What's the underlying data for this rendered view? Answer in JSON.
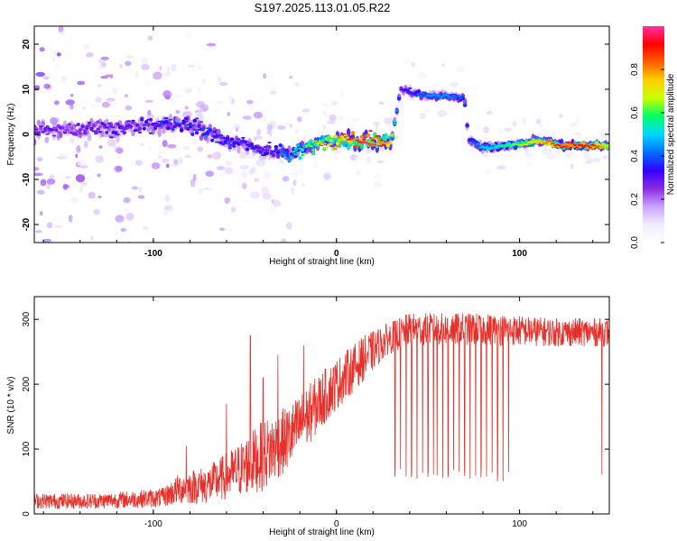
{
  "title": "S197.2025.113.01.05.R22",
  "colors": {
    "background": "#ffffff",
    "snr_line": "#e8302a",
    "colormap": [
      "#ffffff",
      "#f3ebff",
      "#c9a3ff",
      "#8a2be2",
      "#3300ff",
      "#0070ff",
      "#00d8ff",
      "#00ff66",
      "#c8ff00",
      "#ffd000",
      "#ff6000",
      "#ff0000",
      "#ff2fa8"
    ]
  },
  "chart_data": [
    {
      "type": "heatmap",
      "name": "spectrogram",
      "xlabel": "Height of straight line (km)",
      "ylabel": "Frequency (Hz)",
      "xlim": [
        -165,
        149
      ],
      "ylim": [
        -24,
        24
      ],
      "xticks": [
        -100,
        0,
        100
      ],
      "xtick_labels": [
        "-100",
        "0",
        "100"
      ],
      "yticks": [
        -20,
        -10,
        0,
        10,
        20
      ],
      "ytick_labels": [
        "-20",
        "-10",
        "0",
        "10",
        "20"
      ],
      "colorbar": {
        "label": "Normalized spectral amplitude",
        "range": [
          0,
          1
        ],
        "ticks": [
          0.0,
          0.2,
          0.4,
          0.6,
          0.8
        ],
        "tick_labels": [
          "0.0",
          "0.2",
          "0.4",
          "0.6",
          "0.8"
        ]
      },
      "ridge": [
        {
          "x": -165,
          "freq": 1.0,
          "amp": 0.25
        },
        {
          "x": -140,
          "freq": 1.0,
          "amp": 0.25
        },
        {
          "x": -120,
          "freq": 1.5,
          "amp": 0.28
        },
        {
          "x": -100,
          "freq": 2.0,
          "amp": 0.3
        },
        {
          "x": -85,
          "freq": 2.5,
          "amp": 0.32
        },
        {
          "x": -70,
          "freq": 0.5,
          "amp": 0.35
        },
        {
          "x": -60,
          "freq": -1.5,
          "amp": 0.32
        },
        {
          "x": -45,
          "freq": -3.0,
          "amp": 0.3
        },
        {
          "x": -35,
          "freq": -4.0,
          "amp": 0.3
        },
        {
          "x": -25,
          "freq": -4.5,
          "amp": 0.45
        },
        {
          "x": -15,
          "freq": -2.5,
          "amp": 0.6
        },
        {
          "x": -5,
          "freq": -1.5,
          "amp": 0.7
        },
        {
          "x": 5,
          "freq": -1.5,
          "amp": 0.8
        },
        {
          "x": 15,
          "freq": -1.5,
          "amp": 0.95
        },
        {
          "x": 25,
          "freq": -1.5,
          "amp": 0.9
        },
        {
          "x": 30,
          "freq": -1.5,
          "amp": 0.7
        },
        {
          "x": 35,
          "freq": 10.0,
          "amp": 0.3
        },
        {
          "x": 50,
          "freq": 8.5,
          "amp": 0.45
        },
        {
          "x": 60,
          "freq": 8.5,
          "amp": 0.45
        },
        {
          "x": 70,
          "freq": 8.0,
          "amp": 0.4
        },
        {
          "x": 72,
          "freq": -1.0,
          "amp": 0.35
        },
        {
          "x": 80,
          "freq": -3.0,
          "amp": 0.5
        },
        {
          "x": 95,
          "freq": -2.5,
          "amp": 0.6
        },
        {
          "x": 110,
          "freq": -1.5,
          "amp": 0.75
        },
        {
          "x": 125,
          "freq": -2.5,
          "amp": 0.95
        },
        {
          "x": 140,
          "freq": -2.5,
          "amp": 0.9
        },
        {
          "x": 149,
          "freq": -2.5,
          "amp": 0.7
        }
      ]
    },
    {
      "type": "line",
      "name": "snr",
      "xlabel": "Height of straight line (km)",
      "ylabel": "SNR (10 * v/v)",
      "xlim": [
        -165,
        149
      ],
      "ylim": [
        0,
        335
      ],
      "xticks": [
        -100,
        0,
        100
      ],
      "xtick_labels": [
        "-100",
        "0",
        "100"
      ],
      "yticks": [
        0,
        100,
        200,
        300
      ],
      "ytick_labels": [
        "0",
        "100",
        "200",
        "300"
      ],
      "envelope": [
        {
          "x": -165,
          "mean": 20,
          "noise": 12
        },
        {
          "x": -130,
          "mean": 20,
          "noise": 12
        },
        {
          "x": -95,
          "mean": 25,
          "noise": 15
        },
        {
          "x": -85,
          "mean": 40,
          "noise": 25
        },
        {
          "x": -70,
          "mean": 45,
          "noise": 30
        },
        {
          "x": -55,
          "mean": 65,
          "noise": 40
        },
        {
          "x": -40,
          "mean": 90,
          "noise": 55
        },
        {
          "x": -25,
          "mean": 120,
          "noise": 50
        },
        {
          "x": -10,
          "mean": 170,
          "noise": 45
        },
        {
          "x": 0,
          "mean": 200,
          "noise": 40
        },
        {
          "x": 15,
          "mean": 240,
          "noise": 35
        },
        {
          "x": 28,
          "mean": 270,
          "noise": 25
        },
        {
          "x": 40,
          "mean": 285,
          "noise": 25
        },
        {
          "x": 80,
          "mean": 285,
          "noise": 25
        },
        {
          "x": 120,
          "mean": 280,
          "noise": 22
        },
        {
          "x": 149,
          "mean": 280,
          "noise": 22
        }
      ],
      "dropouts_x": [
        32,
        35,
        38,
        41,
        44,
        47,
        50,
        53,
        55,
        58,
        61,
        64,
        67,
        70,
        73,
        76,
        79,
        82,
        85,
        88,
        91,
        94,
        145
      ],
      "dropout_min": 50,
      "spikes": [
        {
          "x": -82,
          "y": 105
        },
        {
          "x": -60,
          "y": 170
        },
        {
          "x": -47,
          "y": 275
        },
        {
          "x": -40,
          "y": 210
        },
        {
          "x": -32,
          "y": 245
        },
        {
          "x": -18,
          "y": 260
        }
      ]
    }
  ]
}
